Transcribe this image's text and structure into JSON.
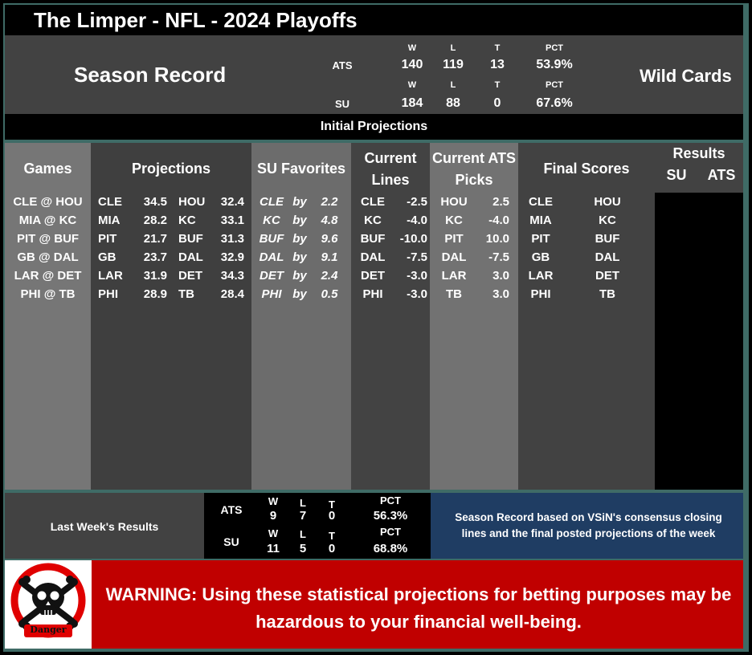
{
  "title": "The Limper - NFL - 2024 Playoffs",
  "season_record": {
    "label": "Season Record",
    "week_label": "Wild Cards",
    "ats": {
      "label": "ATS",
      "w_head": "W",
      "l_head": "L",
      "t_head": "T",
      "pct_head": "PCT",
      "w": "140",
      "l": "119",
      "t": "13",
      "pct": "53.9%"
    },
    "su": {
      "label": "SU",
      "w_head": "W",
      "l_head": "L",
      "t_head": "T",
      "pct_head": "PCT",
      "w": "184",
      "l": "88",
      "t": "0",
      "pct": "67.6%"
    }
  },
  "initial_projections": "Initial Projections",
  "headers": {
    "games": "Games",
    "projections": "Projections",
    "su_favorites": "SU Favorites",
    "current_lines_1": "Current",
    "current_lines_2": "Lines",
    "current_ats_1": "Current ATS",
    "current_ats_2": "Picks",
    "final_scores": "Final Scores",
    "results": "Results",
    "results_su": "SU",
    "results_ats": "ATS"
  },
  "games": [
    {
      "game": "CLE @ HOU",
      "away": "CLE",
      "away_proj": "34.5",
      "home": "HOU",
      "home_proj": "32.4",
      "fav": "CLE",
      "by": "by",
      "margin": "2.2",
      "line_team": "CLE",
      "line": "-2.5",
      "pick_team": "HOU",
      "pick_line": "2.5",
      "final_away": "CLE",
      "final_home": "HOU"
    },
    {
      "game": "MIA @ KC",
      "away": "MIA",
      "away_proj": "28.2",
      "home": "KC",
      "home_proj": "33.1",
      "fav": "KC",
      "by": "by",
      "margin": "4.8",
      "line_team": "KC",
      "line": "-4.0",
      "pick_team": "KC",
      "pick_line": "-4.0",
      "final_away": "MIA",
      "final_home": "KC"
    },
    {
      "game": "PIT @ BUF",
      "away": "PIT",
      "away_proj": "21.7",
      "home": "BUF",
      "home_proj": "31.3",
      "fav": "BUF",
      "by": "by",
      "margin": "9.6",
      "line_team": "BUF",
      "line": "-10.0",
      "pick_team": "PIT",
      "pick_line": "10.0",
      "final_away": "PIT",
      "final_home": "BUF"
    },
    {
      "game": "GB @ DAL",
      "away": "GB",
      "away_proj": "23.7",
      "home": "DAL",
      "home_proj": "32.9",
      "fav": "DAL",
      "by": "by",
      "margin": "9.1",
      "line_team": "DAL",
      "line": "-7.5",
      "pick_team": "DAL",
      "pick_line": "-7.5",
      "final_away": "GB",
      "final_home": "DAL"
    },
    {
      "game": "LAR @ DET",
      "away": "LAR",
      "away_proj": "31.9",
      "home": "DET",
      "home_proj": "34.3",
      "fav": "DET",
      "by": "by",
      "margin": "2.4",
      "line_team": "DET",
      "line": "-3.0",
      "pick_team": "LAR",
      "pick_line": "3.0",
      "final_away": "LAR",
      "final_home": "DET"
    },
    {
      "game": "PHI @ TB",
      "away": "PHI",
      "away_proj": "28.9",
      "home": "TB",
      "home_proj": "28.4",
      "fav": "PHI",
      "by": "by",
      "margin": "0.5",
      "line_team": "PHI",
      "line": "-3.0",
      "pick_team": "TB",
      "pick_line": "3.0",
      "final_away": "PHI",
      "final_home": "TB"
    }
  ],
  "last_week": {
    "label": "Last Week's Results",
    "ats": {
      "label": "ATS",
      "w_head": "W",
      "l_head": "L",
      "t_head": "T",
      "pct_head": "PCT",
      "w": "9",
      "l": "7",
      "t": "0",
      "pct": "56.3%"
    },
    "su": {
      "label": "SU",
      "w_head": "W",
      "l_head": "L",
      "t_head": "T",
      "pct_head": "PCT",
      "w": "11",
      "l": "5",
      "t": "0",
      "pct": "68.8%"
    }
  },
  "note": "Season Record based on VSiN's consensus closing lines and the final posted projections of the week",
  "danger_label": "Danger",
  "warning": "WARNING: Using these statistical projections for betting purposes may be hazardous to your financial well-being.",
  "icons": {
    "danger": "skull-crossbones-icon"
  },
  "colors": {
    "warning_bg": "#c00000",
    "note_bg": "#1f3d63",
    "frame": "#3f6b66"
  }
}
